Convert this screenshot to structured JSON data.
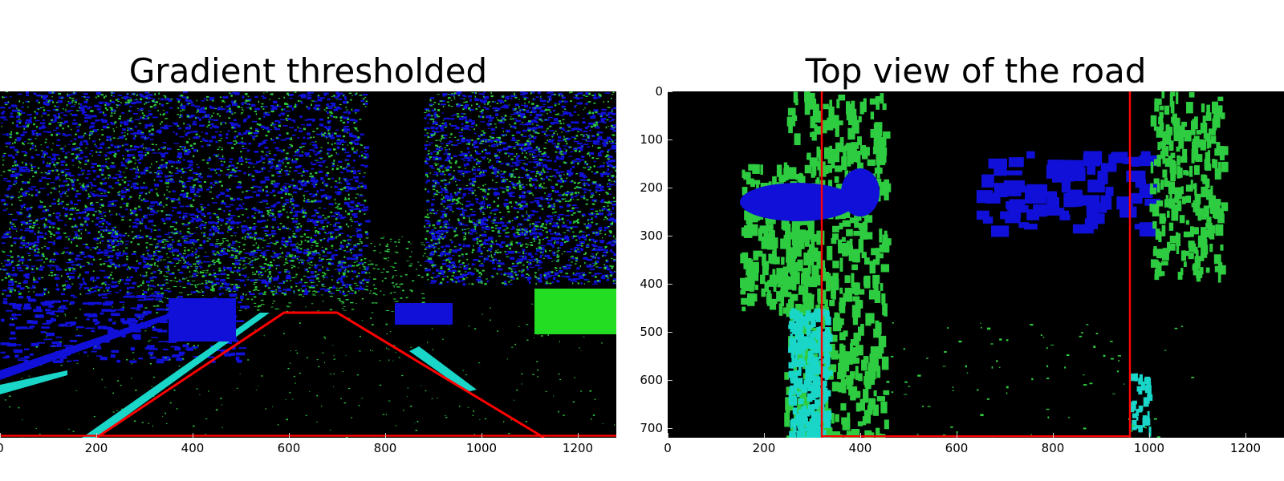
{
  "colors": {
    "background": "#000000",
    "gradient_x": "#2ecc40",
    "gradient_mag": "#1010d8",
    "both": "#19d6c8",
    "lines": "#ff0000"
  },
  "chart_data": [
    {
      "type": "image",
      "title": "Gradient thresholded",
      "xlabel": "",
      "ylabel": "",
      "xlim": [
        0,
        1280
      ],
      "ylim": [
        720,
        0
      ],
      "xticks": [
        0,
        200,
        400,
        600,
        800,
        1000,
        1200
      ],
      "xtick_labels": [
        "0",
        "200",
        "400",
        "600",
        "800",
        "1000",
        "1200"
      ],
      "yticks": [],
      "ytick_labels": [],
      "overlay_polygon": {
        "color": "red",
        "x": [
          200,
          590,
          700,
          1130
        ],
        "y": [
          720,
          460,
          460,
          720
        ]
      }
    },
    {
      "type": "image",
      "title": "Top view of the road",
      "xlabel": "",
      "ylabel": "",
      "xlim": [
        0,
        1280
      ],
      "ylim": [
        720,
        0
      ],
      "xticks": [
        0,
        200,
        400,
        600,
        800,
        1000,
        1200
      ],
      "xtick_labels": [
        "0",
        "200",
        "400",
        "600",
        "800",
        "1000",
        "1200"
      ],
      "yticks": [
        0,
        100,
        200,
        300,
        400,
        500,
        600,
        700
      ],
      "ytick_labels": [
        "0",
        "100",
        "200",
        "300",
        "400",
        "500",
        "600",
        "700"
      ],
      "overlay_lines": {
        "color": "red",
        "x": [
          320,
          960
        ],
        "y_range": [
          0,
          720
        ]
      }
    }
  ]
}
